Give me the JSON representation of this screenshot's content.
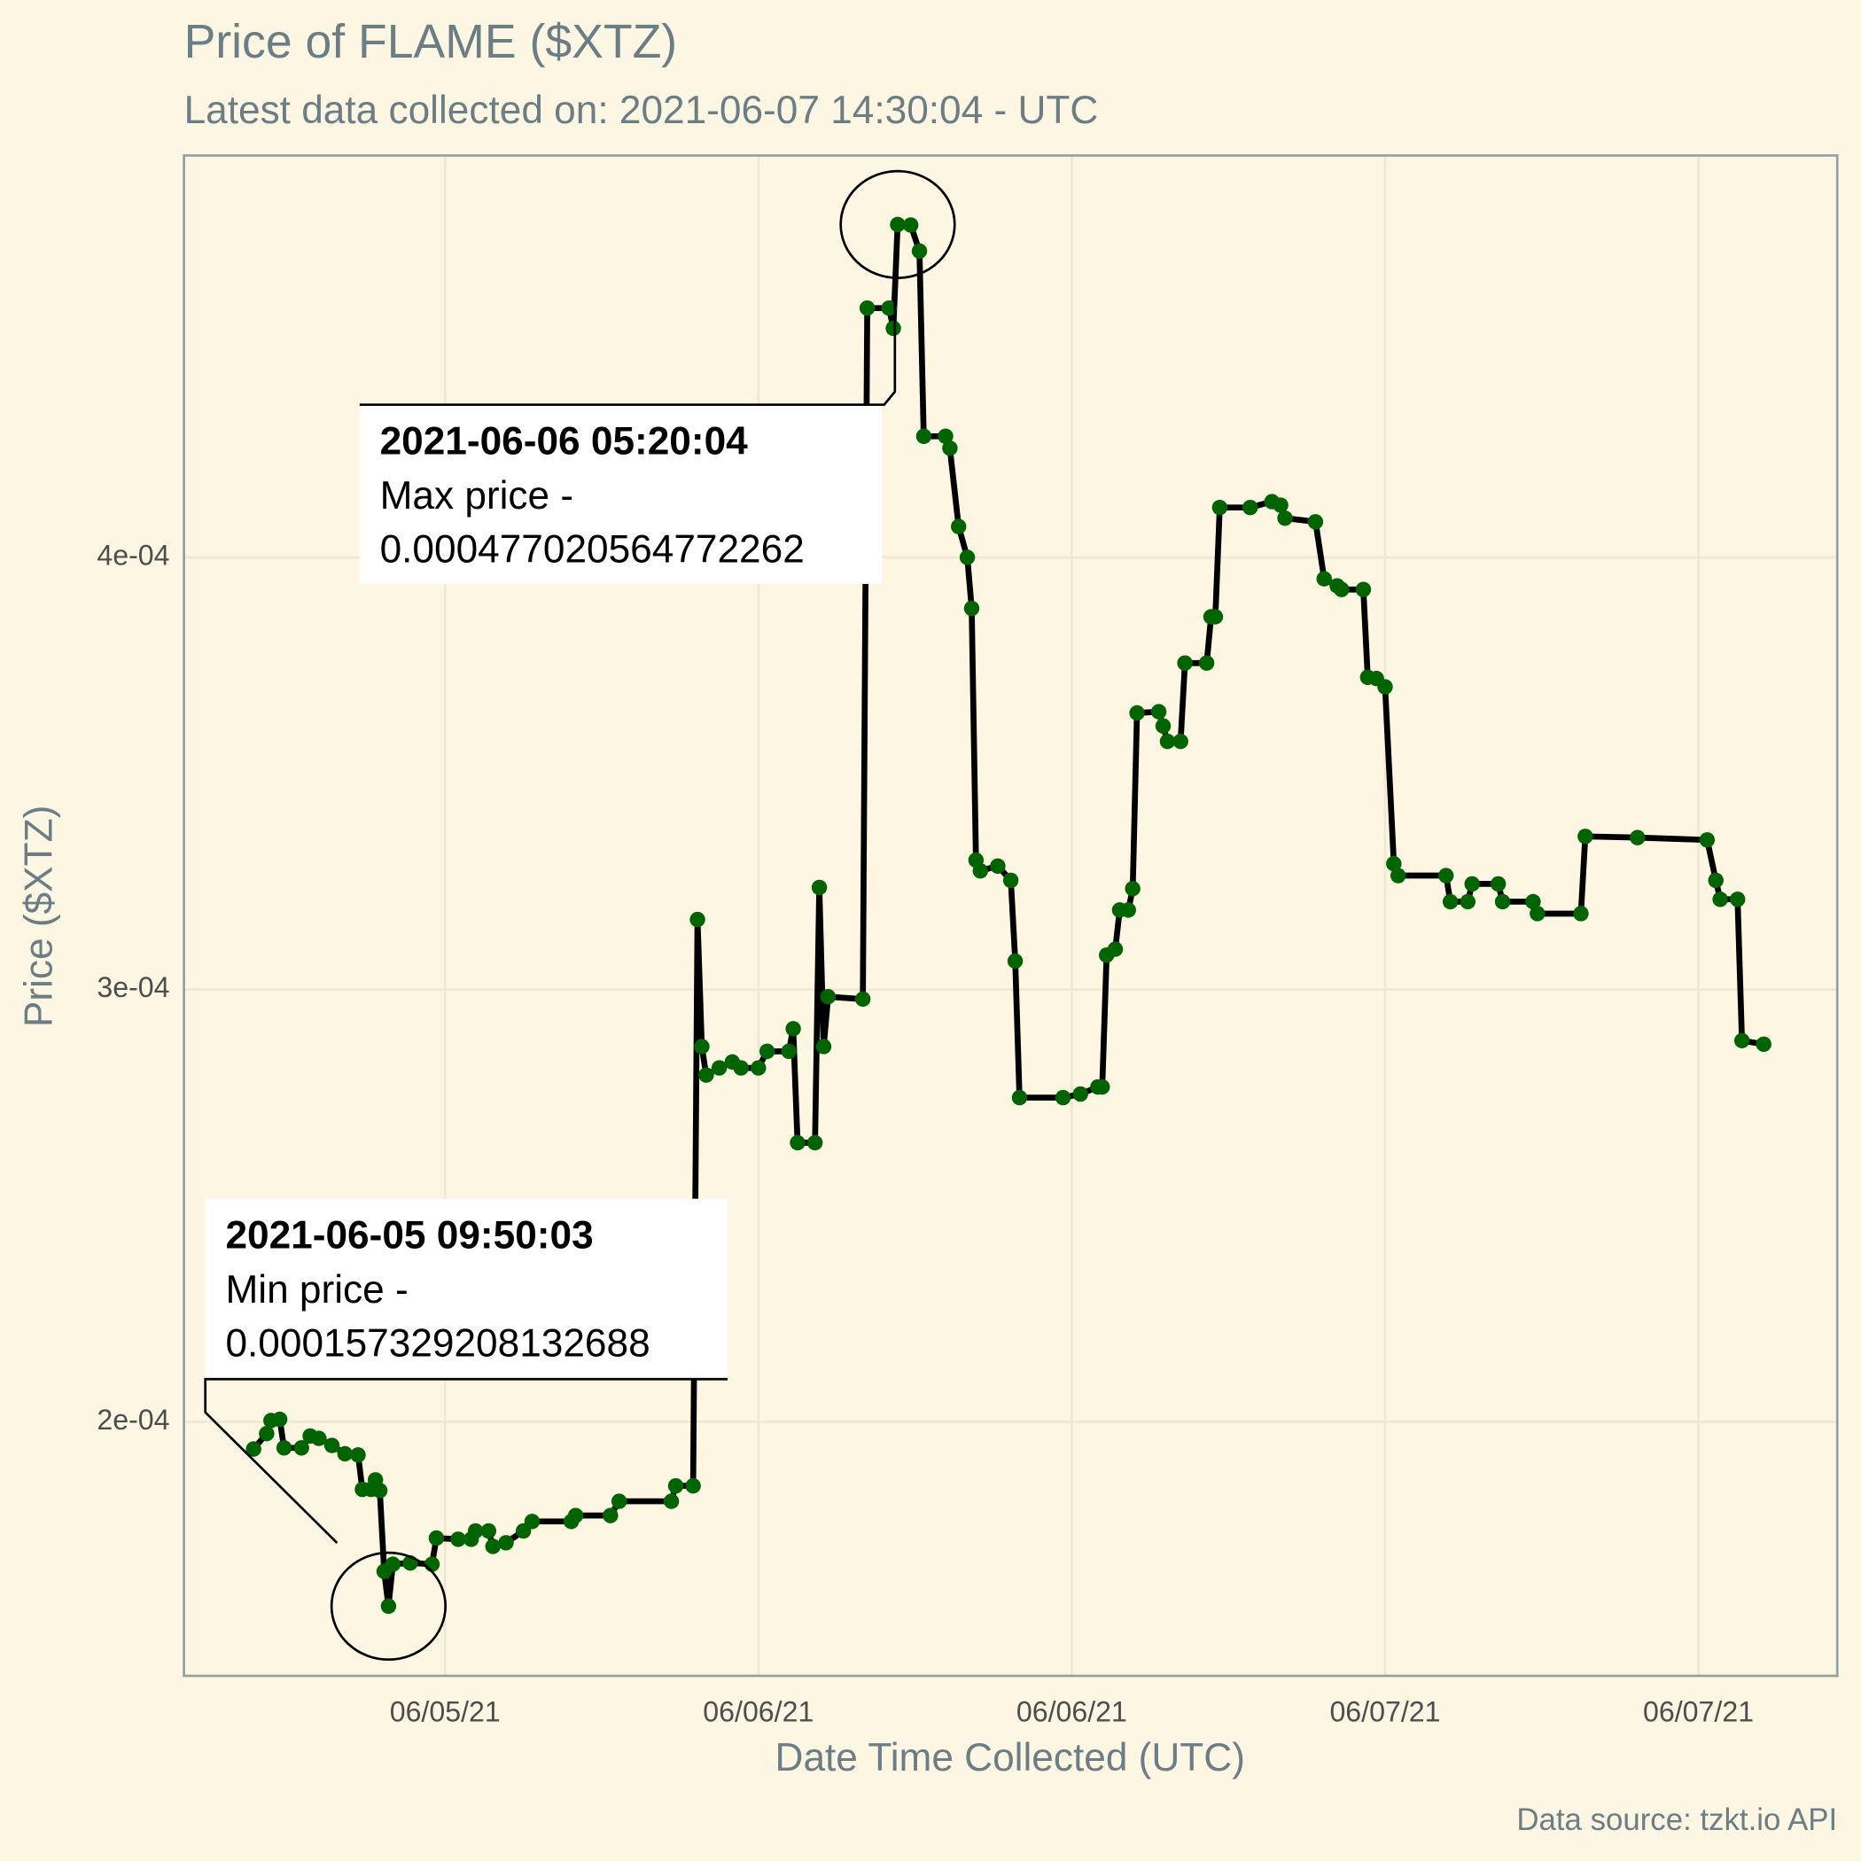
{
  "chart_data": {
    "type": "line",
    "title": "Price of FLAME ($XTZ)",
    "subtitle": "Latest data collected on: 2021-06-07 14:30:04  - UTC",
    "x_label": "Date Time Collected (UTC)",
    "y_label": "Price ($XTZ)",
    "caption": "Data source: tzkt.io API",
    "x": [
      "2021-06-05 04:40",
      "2021-06-05 05:10",
      "2021-06-05 05:20",
      "2021-06-05 05:40",
      "2021-06-05 05:50",
      "2021-06-05 06:30",
      "2021-06-05 06:50",
      "2021-06-05 07:10",
      "2021-06-05 07:40",
      "2021-06-05 08:10",
      "2021-06-05 08:40",
      "2021-06-05 08:50",
      "2021-06-05 09:10",
      "2021-06-05 09:20",
      "2021-06-05 09:30",
      "2021-06-05 09:40",
      "2021-06-05 09:50",
      "2021-06-05 10:00",
      "2021-06-05 10:40",
      "2021-06-05 11:30",
      "2021-06-05 11:40",
      "2021-06-05 12:30",
      "2021-06-05 13:00",
      "2021-06-05 13:10",
      "2021-06-05 13:40",
      "2021-06-05 13:50",
      "2021-06-05 14:20",
      "2021-06-05 15:00",
      "2021-06-05 15:20",
      "2021-06-05 16:50",
      "2021-06-05 17:00",
      "2021-06-05 18:20",
      "2021-06-05 18:40",
      "2021-06-05 20:40",
      "2021-06-05 20:50",
      "2021-06-05 21:30",
      "2021-06-05 21:40",
      "2021-06-05 21:50",
      "2021-06-05 22:00",
      "2021-06-05 22:30",
      "2021-06-05 23:00",
      "2021-06-05 23:20",
      "2021-06-06 00:00",
      "2021-06-06 00:20",
      "2021-06-06 01:10",
      "2021-06-06 01:20",
      "2021-06-06 01:30",
      "2021-06-06 02:10",
      "2021-06-06 02:20",
      "2021-06-06 02:30",
      "2021-06-06 02:40",
      "2021-06-06 04:00",
      "2021-06-06 04:10",
      "2021-06-06 05:00",
      "2021-06-06 05:10",
      "2021-06-06 05:20",
      "2021-06-06 05:50",
      "2021-06-06 06:10",
      "2021-06-06 06:20",
      "2021-06-06 07:10",
      "2021-06-06 07:20",
      "2021-06-06 07:40",
      "2021-06-06 08:00",
      "2021-06-06 08:10",
      "2021-06-06 08:20",
      "2021-06-06 08:30",
      "2021-06-06 09:10",
      "2021-06-06 09:40",
      "2021-06-06 09:50",
      "2021-06-06 10:00",
      "2021-06-06 11:40",
      "2021-06-06 12:20",
      "2021-06-06 13:00",
      "2021-06-06 13:10",
      "2021-06-06 13:20",
      "2021-06-06 13:40",
      "2021-06-06 13:50",
      "2021-06-06 14:10",
      "2021-06-06 14:20",
      "2021-06-06 14:30",
      "2021-06-06 15:20",
      "2021-06-06 15:30",
      "2021-06-06 15:40",
      "2021-06-06 16:10",
      "2021-06-06 16:20",
      "2021-06-06 17:10",
      "2021-06-06 17:20",
      "2021-06-06 17:30",
      "2021-06-06 17:40",
      "2021-06-06 18:50",
      "2021-06-06 19:40",
      "2021-06-06 20:00",
      "2021-06-06 20:10",
      "2021-06-06 21:20",
      "2021-06-06 21:40",
      "2021-06-06 22:10",
      "2021-06-06 22:20",
      "2021-06-06 23:10",
      "2021-06-06 23:20",
      "2021-06-06 23:40",
      "2021-06-07 00:00",
      "2021-06-07 00:20",
      "2021-06-07 00:30",
      "2021-06-07 02:20",
      "2021-06-07 02:30",
      "2021-06-07 03:10",
      "2021-06-07 03:20",
      "2021-06-07 04:20",
      "2021-06-07 04:30",
      "2021-06-07 05:40",
      "2021-06-07 05:50",
      "2021-06-07 07:30",
      "2021-06-07 07:40",
      "2021-06-07 09:40",
      "2021-06-07 12:20",
      "2021-06-07 12:40",
      "2021-06-07 12:50",
      "2021-06-07 13:30",
      "2021-06-07 13:40",
      "2021-06-07 14:30"
    ],
    "values": [
      0.00019368,
      0.00019725,
      0.00020027,
      0.00020055,
      0.00019396,
      0.00019396,
      0.0001967,
      0.00019615,
      0.00019451,
      0.00019258,
      0.00019231,
      0.00018434,
      0.00018434,
      0.00018654,
      0.00018407,
      0.00016538,
      0.000157329208132688,
      0.00016703,
      0.00016731,
      0.00016703,
      0.00017308,
      0.0001728,
      0.0001728,
      0.00017473,
      0.00017473,
      0.00017115,
      0.00017198,
      0.00017473,
      0.00017692,
      0.00017692,
      0.0001783,
      0.0001783,
      0.00018159,
      0.00018159,
      0.00018516,
      0.00018516,
      0.00031621,
      0.00028681,
      0.00028022,
      0.00028187,
      0.00028324,
      0.00028187,
      0.00028187,
      0.00028571,
      0.00028571,
      0.00029093,
      0.00026456,
      0.00026456,
      0.00032363,
      0.00028681,
      0.00029835,
      0.0002978,
      0.00045769,
      0.00045769,
      0.00045302,
      0.000477020564772262,
      0.0004769,
      0.00047088,
      0.00042802,
      0.00042802,
      0.00042527,
      0.00040714,
      0.0004,
      0.00038819,
      0.00032995,
      0.00032747,
      0.00032857,
      0.00032527,
      0.00030659,
      0.000275,
      0.000275,
      0.00027582,
      0.00027747,
      0.00027747,
      0.00030797,
      0.00030934,
      0.00031841,
      0.00031841,
      0.00032335,
      0.00036401,
      0.00036429,
      0.00036099,
      0.00035742,
      0.00035742,
      0.00037555,
      0.00037555,
      0.00038626,
      0.00038626,
      0.00041154,
      0.00041154,
      0.00041291,
      0.00041209,
      0.00040907,
      0.00040824,
      0.00039505,
      0.00039341,
      0.00039258,
      0.00039258,
      0.00037225,
      0.00037198,
      0.00037005,
      0.00032912,
      0.00032637,
      0.00032637,
      0.00032033,
      0.00032033,
      0.00032445,
      0.00032445,
      0.00032033,
      0.00032033,
      0.00031758,
      0.00031758,
      0.00033544,
      0.00033516,
      0.00033462,
      0.00032527,
      0.00032088,
      0.00032088,
      0.00028819,
      0.00028736
    ],
    "point_color": "#006400",
    "line_color": "#000000",
    "xlim": [
      "2021-06-05 02:00",
      "2021-06-07 17:19"
    ],
    "xticks": [
      {
        "value": "2021-06-05 12:00",
        "label": "06/05/21"
      },
      {
        "value": "2021-06-06 00:00",
        "label": "06/06/21"
      },
      {
        "value": "2021-06-06 12:00",
        "label": "06/06/21"
      },
      {
        "value": "2021-06-07 00:00",
        "label": "06/07/21"
      },
      {
        "value": "2021-06-07 12:00",
        "label": "06/07/21"
      }
    ],
    "ylim": [
      0.0001412,
      0.000493
    ],
    "yticks": [
      {
        "value": 0.0002,
        "label": "2e-04"
      },
      {
        "value": 0.0003,
        "label": "3e-04"
      },
      {
        "value": 0.0004,
        "label": "4e-04"
      }
    ],
    "grid": true,
    "annotations": [
      {
        "title": "2021-06-06 05:20:04",
        "lines": [
          "Max price -",
          "0.000477020564772262"
        ]
      },
      {
        "title": "2021-06-05 09:50:03",
        "lines": [
          "Min price -",
          "0.000157329208132688"
        ]
      }
    ]
  }
}
